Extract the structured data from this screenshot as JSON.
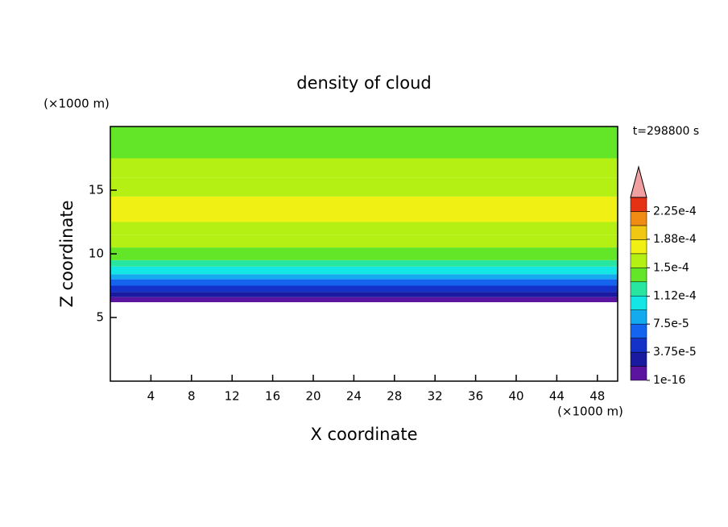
{
  "chart_data": {
    "type": "contour",
    "title": "density of cloud",
    "xlabel": "X coordinate",
    "ylabel": "Z coordinate",
    "xunit": "(×1000 m)",
    "yunit": "(×1000 m)",
    "time_label": "t=298800 s",
    "xlim": [
      0,
      50
    ],
    "xticks": [
      4,
      8,
      12,
      16,
      20,
      24,
      28,
      32,
      36,
      40,
      44,
      48
    ],
    "ylim": [
      0,
      20
    ],
    "yticks": [
      5,
      10,
      15
    ],
    "profile": {
      "z": [
        6.2,
        6.6,
        7.0,
        7.5,
        8.0,
        8.4,
        9.0,
        9.5,
        10.5,
        11.5,
        12.5,
        14.5,
        16.0,
        17.5
      ],
      "values": [
        1e-05,
        3e-05,
        5e-05,
        7e-05,
        8.5e-05,
        0.0001,
        0.00012,
        0.00014,
        0.00016,
        0.00016,
        0.00017,
        0.00016,
        0.00015,
        0.00014
      ]
    },
    "colorbar": {
      "levels": [
        1e-16,
        1.875e-05,
        3.75e-05,
        5.625e-05,
        7.5e-05,
        9.375e-05,
        0.0001125,
        0.00013125,
        0.00015,
        0.00016875,
        0.0001875,
        0.00020625,
        0.000225,
        0.00024375
      ],
      "colors": [
        "#5a14a0",
        "#1a1aa0",
        "#1432c8",
        "#1464f0",
        "#14aaf0",
        "#14e6e6",
        "#28e6a0",
        "#64e628",
        "#b4f014",
        "#f0f014",
        "#f0c814",
        "#f08c14",
        "#e63214"
      ],
      "over_color": "#f0a0a0",
      "ticks": [
        1e-16,
        {
          "value": 3.75e-05,
          "label": "3.75e-5"
        },
        {
          "value": 7.5e-05,
          "label": "7.5e-5"
        },
        {
          "value": 0.000112,
          "label": "1.12e-4"
        },
        {
          "value": 0.00015,
          "label": "1.5e-4"
        },
        {
          "value": 0.000188,
          "label": "1.88e-4"
        },
        {
          "value": 0.000225,
          "label": "2.25e-4"
        }
      ]
    }
  }
}
